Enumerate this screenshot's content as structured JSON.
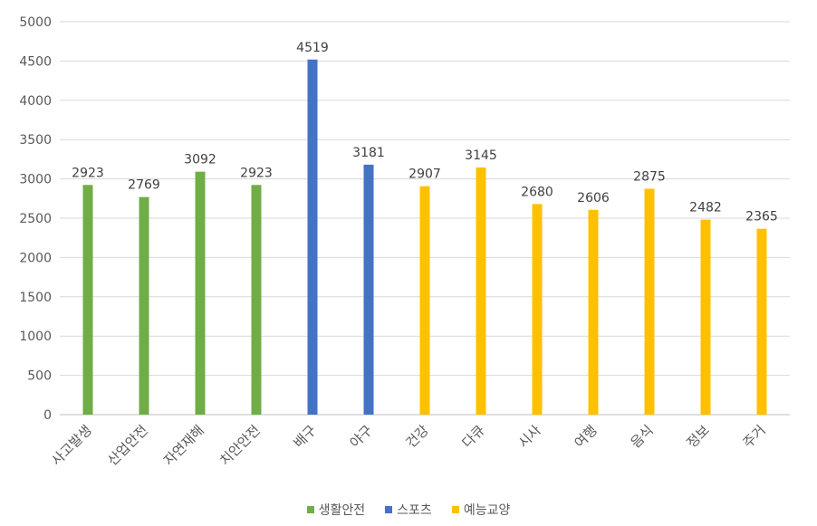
{
  "chart_data": {
    "type": "bar",
    "categories": [
      "사고발생",
      "산업안전",
      "자연재해",
      "치안안전",
      "배구",
      "야구",
      "건강",
      "다큐",
      "시사",
      "여행",
      "음식",
      "정보",
      "주거"
    ],
    "values": [
      2923,
      2769,
      3092,
      2923,
      4519,
      3181,
      2907,
      3145,
      2680,
      2606,
      2875,
      2482,
      2365
    ],
    "groups": [
      "생활안전",
      "생활안전",
      "생활안전",
      "생활안전",
      "스포츠",
      "스포츠",
      "예능교양",
      "예능교양",
      "예능교양",
      "예능교양",
      "예능교양",
      "예능교양",
      "예능교양"
    ],
    "series": [
      {
        "name": "생활안전",
        "color": "#70ad47"
      },
      {
        "name": "스포츠",
        "color": "#4472c4"
      },
      {
        "name": "예능교양",
        "color": "#ffc000"
      }
    ],
    "ylim": [
      0,
      5000
    ],
    "yticks": [
      0,
      500,
      1000,
      1500,
      2000,
      2500,
      3000,
      3500,
      4000,
      4500,
      5000
    ],
    "grid": true,
    "legend_position": "bottom",
    "data_labels": true,
    "title": "",
    "xlabel": "",
    "ylabel": ""
  }
}
